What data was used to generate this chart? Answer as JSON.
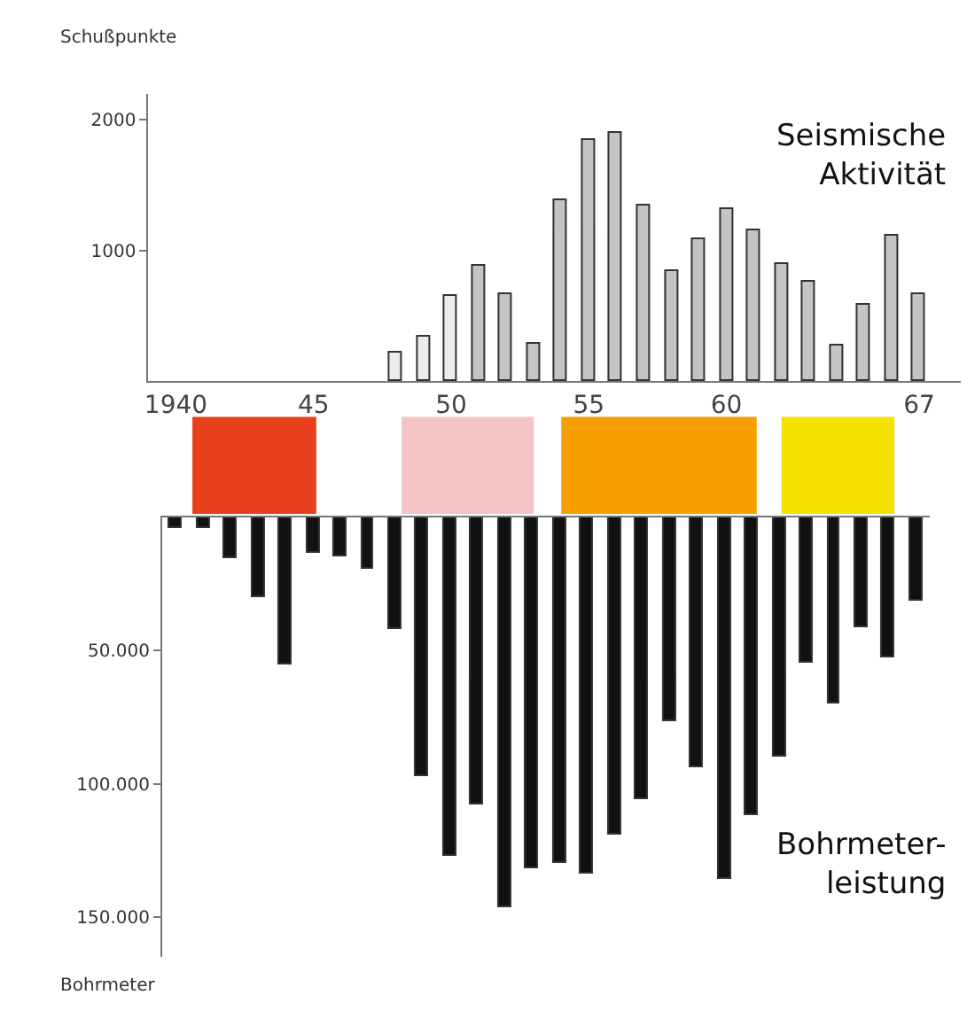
{
  "chart_data": [
    {
      "type": "bar",
      "title": "Seismische\nAktivität",
      "ylabel": "Schußpunkte",
      "x": [
        1948,
        1949,
        1950,
        1951,
        1952,
        1953,
        1954,
        1955,
        1956,
        1957,
        1958,
        1959,
        1960,
        1961,
        1962,
        1963,
        1964,
        1965,
        1966,
        1967
      ],
      "values": [
        220,
        340,
        650,
        880,
        670,
        290,
        1380,
        1850,
        1900,
        1340,
        840,
        1080,
        1320,
        1160,
        900,
        760,
        270,
        580,
        1120,
        660
      ],
      "colors": [
        "#ececec",
        "#ececec",
        "#ececec",
        "#c4c4c4",
        "#c4c4c4",
        "#c4c4c4",
        "#c4c4c4",
        "#c4c4c4",
        "#c4c4c4",
        "#c4c4c4",
        "#c4c4c4",
        "#c4c4c4",
        "#c4c4c4",
        "#c4c4c4",
        "#c4c4c4",
        "#c4c4c4",
        "#c4c4c4",
        "#c4c4c4",
        "#c4c4c4",
        "#c4c4c4"
      ],
      "xlim": [
        1939,
        1968.5
      ],
      "xticks": [
        {
          "value": 1940,
          "label": "1940"
        },
        {
          "value": 1945,
          "label": "45"
        },
        {
          "value": 1950,
          "label": "50"
        },
        {
          "value": 1955,
          "label": "55"
        },
        {
          "value": 1960,
          "label": "60"
        },
        {
          "value": 1967,
          "label": "67"
        }
      ],
      "ylim": [
        0,
        2200
      ],
      "yticks": [
        1000,
        2000
      ]
    },
    {
      "type": "bar",
      "title": "Bohrmeter-\nleistung",
      "ylabel": "Bohrmeter",
      "categories": [
        null,
        null,
        null,
        null,
        null,
        null,
        null,
        null,
        null,
        null,
        null,
        null,
        null,
        null,
        null,
        null,
        null,
        null,
        null,
        null,
        null,
        null,
        null,
        null,
        null,
        null,
        null,
        null
      ],
      "values": [
        4000,
        4000,
        15000,
        30000,
        55000,
        13000,
        14500,
        19500,
        42000,
        97000,
        127000,
        108000,
        146500,
        132000,
        130000,
        133500,
        119000,
        106000,
        76500,
        93500,
        136000,
        112000,
        89500,
        54500,
        70000,
        41500,
        52500,
        31500
      ],
      "color": "#111111",
      "ylim": [
        165000,
        0
      ],
      "yticks": [
        {
          "value": 50000,
          "label": "50.000"
        },
        {
          "value": 100000,
          "label": "100.000"
        },
        {
          "value": 150000,
          "label": "150.000"
        }
      ],
      "tick_labels": "y"
    }
  ]
}
